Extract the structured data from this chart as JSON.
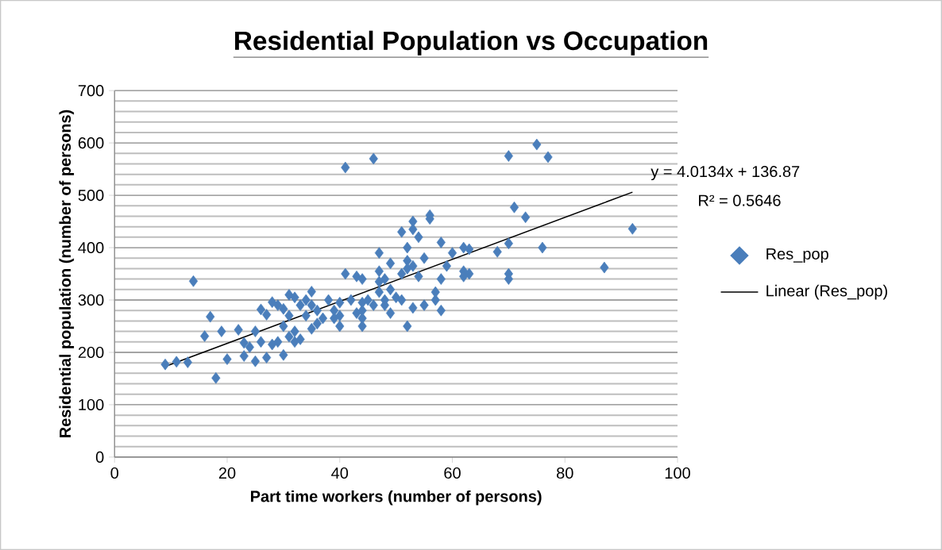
{
  "chart_data": {
    "type": "scatter",
    "title": "Residential Population vs Occupation",
    "xlabel": "Part time workers (number of persons)",
    "ylabel": "Residential population (number of persons)",
    "xlim": [
      0,
      100
    ],
    "ylim": [
      0,
      700
    ],
    "xticks": [
      0,
      20,
      40,
      60,
      80,
      100
    ],
    "yticks": [
      0,
      100,
      200,
      300,
      400,
      500,
      600,
      700
    ],
    "grid": "y",
    "legend": "right",
    "marker": "diamond",
    "annotations": [
      "y = 4.0134x + 136.87",
      "R² = 0.5646"
    ],
    "series": [
      {
        "name": "Res_pop",
        "color": "#4a7ebb",
        "x": [
          9,
          11,
          13,
          14,
          16,
          17,
          18,
          19,
          20,
          22,
          23,
          23,
          24,
          25,
          25,
          26,
          26,
          27,
          27,
          28,
          28,
          29,
          29,
          30,
          30,
          30,
          31,
          31,
          31,
          32,
          32,
          32,
          33,
          33,
          34,
          34,
          35,
          35,
          35,
          36,
          36,
          37,
          38,
          39,
          39,
          40,
          40,
          40,
          41,
          41,
          42,
          43,
          43,
          44,
          44,
          44,
          44,
          44,
          45,
          46,
          46,
          47,
          47,
          47,
          47,
          48,
          48,
          48,
          49,
          49,
          49,
          50,
          51,
          51,
          51,
          52,
          52,
          52,
          52,
          53,
          53,
          53,
          53,
          54,
          54,
          55,
          55,
          56,
          56,
          57,
          57,
          58,
          58,
          58,
          59,
          60,
          62,
          62,
          62,
          63,
          63,
          68,
          70,
          70,
          70,
          70,
          71,
          73,
          75,
          76,
          77,
          87,
          92
        ],
        "values": [
          177,
          182,
          181,
          336,
          231,
          268,
          151,
          240,
          187,
          243,
          193,
          218,
          210,
          240,
          183,
          282,
          220,
          272,
          190,
          296,
          215,
          290,
          220,
          283,
          250,
          195,
          310,
          270,
          230,
          305,
          240,
          220,
          290,
          225,
          300,
          270,
          316,
          290,
          245,
          280,
          255,
          265,
          300,
          280,
          265,
          295,
          250,
          270,
          350,
          553,
          300,
          345,
          275,
          340,
          295,
          280,
          250,
          265,
          300,
          570,
          290,
          390,
          355,
          335,
          315,
          340,
          300,
          290,
          370,
          320,
          275,
          305,
          430,
          350,
          300,
          375,
          400,
          360,
          250,
          450,
          435,
          365,
          285,
          420,
          345,
          380,
          290,
          462,
          455,
          315,
          300,
          410,
          340,
          280,
          365,
          390,
          400,
          355,
          345,
          397,
          350,
          392,
          575,
          408,
          350,
          340,
          477,
          458,
          597,
          400,
          573,
          362,
          436
        ]
      },
      {
        "name": "Linear (Res_pop)",
        "type": "line",
        "color": "#000000",
        "marker": "none",
        "x": [
          9,
          92
        ],
        "values": [
          173,
          506
        ]
      }
    ]
  }
}
